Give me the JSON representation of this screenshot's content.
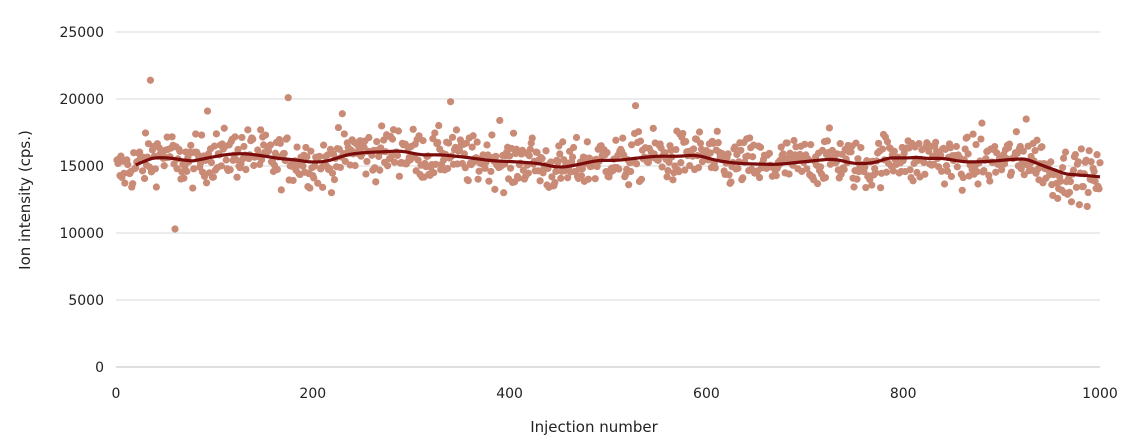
{
  "chart_data": {
    "type": "scatter",
    "title": "",
    "xlabel": "Injection number",
    "ylabel": "Ion intensity (cps.)",
    "xlim": [
      0,
      1000
    ],
    "ylim": [
      0,
      25000
    ],
    "x_ticks": [
      0,
      200,
      400,
      600,
      800,
      1000
    ],
    "y_ticks": [
      0,
      5000,
      10000,
      15000,
      20000,
      25000
    ],
    "x_tick_labels": [
      "0",
      "200",
      "400",
      "600",
      "800",
      "1000"
    ],
    "y_tick_labels": [
      "0",
      "5000",
      "10000",
      "15000",
      "20000",
      "25000"
    ],
    "grid": "horizontal",
    "legend": "none",
    "colors": {
      "points": "#c98a76",
      "trend": "#7a0c0c",
      "grid": "#d9d9d9",
      "axis": "#bfbfbf"
    },
    "series": [
      {
        "kind": "scatter",
        "x_start": 1,
        "x_step": 1,
        "count": 1000,
        "center_line": [
          [
            0,
            14500
          ],
          [
            20,
            15000
          ],
          [
            40,
            15800
          ],
          [
            55,
            16000
          ],
          [
            60,
            15200
          ],
          [
            80,
            15300
          ],
          [
            100,
            15800
          ],
          [
            140,
            16000
          ],
          [
            160,
            15500
          ],
          [
            190,
            15500
          ],
          [
            210,
            15000
          ],
          [
            240,
            16200
          ],
          [
            260,
            15800
          ],
          [
            280,
            16300
          ],
          [
            300,
            16000
          ],
          [
            320,
            15600
          ],
          [
            340,
            16100
          ],
          [
            360,
            15300
          ],
          [
            380,
            15700
          ],
          [
            400,
            15000
          ],
          [
            420,
            15600
          ],
          [
            440,
            14800
          ],
          [
            460,
            14900
          ],
          [
            480,
            15300
          ],
          [
            500,
            15600
          ],
          [
            520,
            15200
          ],
          [
            540,
            16000
          ],
          [
            560,
            15500
          ],
          [
            580,
            15900
          ],
          [
            600,
            15800
          ],
          [
            620,
            15000
          ],
          [
            640,
            15400
          ],
          [
            660,
            14900
          ],
          [
            680,
            15300
          ],
          [
            700,
            15200
          ],
          [
            720,
            15600
          ],
          [
            740,
            15500
          ],
          [
            760,
            14800
          ],
          [
            780,
            15600
          ],
          [
            800,
            15900
          ],
          [
            810,
            15200
          ],
          [
            830,
            15900
          ],
          [
            850,
            15300
          ],
          [
            880,
            15300
          ],
          [
            900,
            15400
          ],
          [
            920,
            15600
          ],
          [
            940,
            15500
          ],
          [
            950,
            14300
          ],
          [
            970,
            14500
          ],
          [
            990,
            14200
          ],
          [
            1000,
            14000
          ]
        ],
        "spread": 1300,
        "outliers": [
          [
            35,
            21400
          ],
          [
            60,
            10300
          ],
          [
            175,
            20100
          ],
          [
            340,
            19800
          ],
          [
            528,
            19500
          ],
          [
            925,
            18500
          ],
          [
            230,
            18900
          ],
          [
            93,
            19100
          ],
          [
            390,
            18400
          ],
          [
            880,
            18200
          ]
        ]
      },
      {
        "kind": "line",
        "smoothing_window": 40,
        "x_start": 20,
        "x_end": 1000
      }
    ]
  }
}
